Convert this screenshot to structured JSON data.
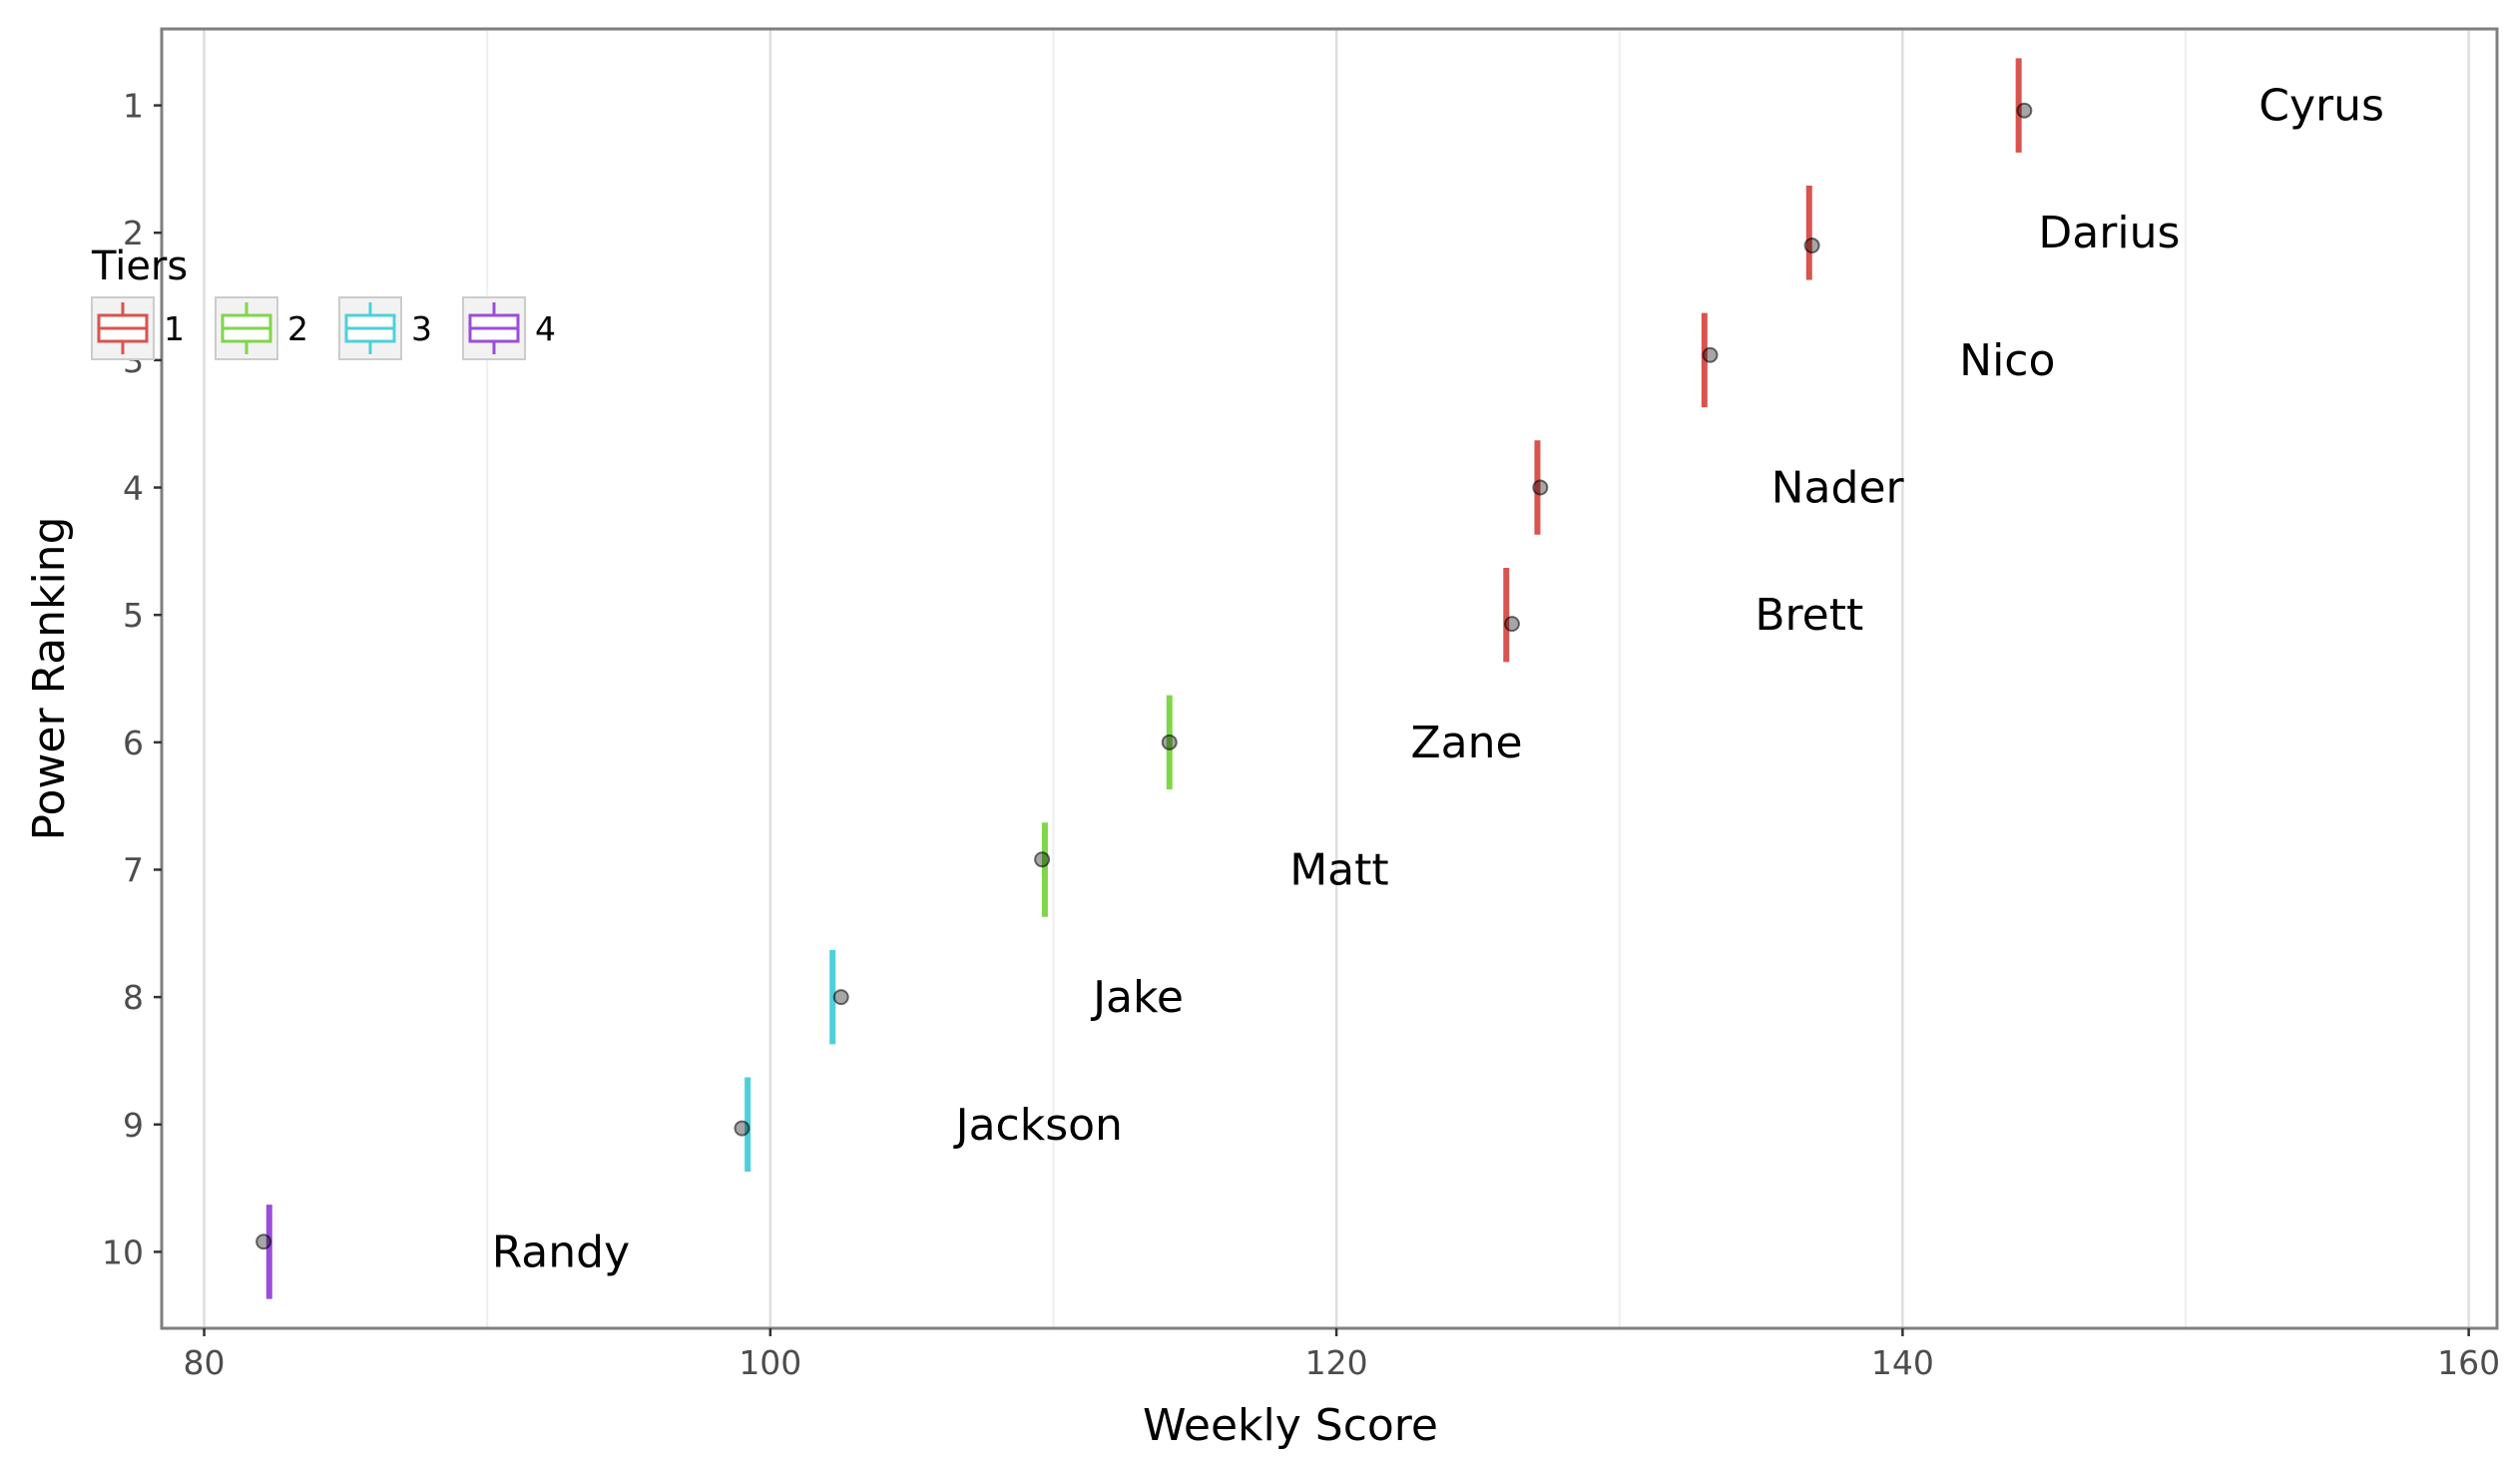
{
  "chart_data": {
    "type": "scatter",
    "xlabel": "Weekly Score",
    "ylabel": "Power Ranking",
    "xlim": [
      78.5,
      161
    ],
    "ylim": [
      0.4,
      10.6
    ],
    "x_ticks": [
      80,
      100,
      120,
      140,
      160
    ],
    "y_ticks": [
      1,
      2,
      3,
      4,
      5,
      6,
      7,
      8,
      9,
      10
    ],
    "y_reversed": true,
    "grid": true,
    "legend": {
      "title": "Tiers",
      "placement": "top-left",
      "entries": [
        {
          "label": "1",
          "color": "#d9534f"
        },
        {
          "label": "2",
          "color": "#7fd64b"
        },
        {
          "label": "3",
          "color": "#4dd0db"
        },
        {
          "label": "4",
          "color": "#9b4ddb"
        }
      ]
    },
    "points": [
      {
        "name": "Cyrus",
        "rank": 1,
        "score": 144.3,
        "rank_jitter": 1.04,
        "range_x": 144.1,
        "tier": 1
      },
      {
        "name": "Darius",
        "rank": 2,
        "score": 136.8,
        "rank_jitter": 2.1,
        "range_x": 136.7,
        "tier": 1
      },
      {
        "name": "Nico",
        "rank": 3,
        "score": 133.2,
        "rank_jitter": 2.96,
        "range_x": 133.0,
        "tier": 1
      },
      {
        "name": "Nader",
        "rank": 4,
        "score": 127.2,
        "rank_jitter": 4.0,
        "range_x": 127.1,
        "tier": 1
      },
      {
        "name": "Brett",
        "rank": 5,
        "score": 126.2,
        "rank_jitter": 5.07,
        "range_x": 126.0,
        "tier": 1
      },
      {
        "name": "Zane",
        "rank": 6,
        "score": 114.1,
        "rank_jitter": 6.0,
        "range_x": 114.1,
        "tier": 2
      },
      {
        "name": "Matt",
        "rank": 7,
        "score": 109.6,
        "rank_jitter": 6.92,
        "range_x": 109.7,
        "tier": 2
      },
      {
        "name": "Jake",
        "rank": 8,
        "score": 102.5,
        "rank_jitter": 8.0,
        "range_x": 102.2,
        "tier": 3
      },
      {
        "name": "Jackson",
        "rank": 9,
        "score": 99.0,
        "rank_jitter": 9.03,
        "range_x": 99.2,
        "tier": 3
      },
      {
        "name": "Randy",
        "rank": 10,
        "score": 82.1,
        "rank_jitter": 9.92,
        "range_x": 82.3,
        "tier": 4
      }
    ],
    "range_half_height": 0.37,
    "label_offset": 10.5
  }
}
